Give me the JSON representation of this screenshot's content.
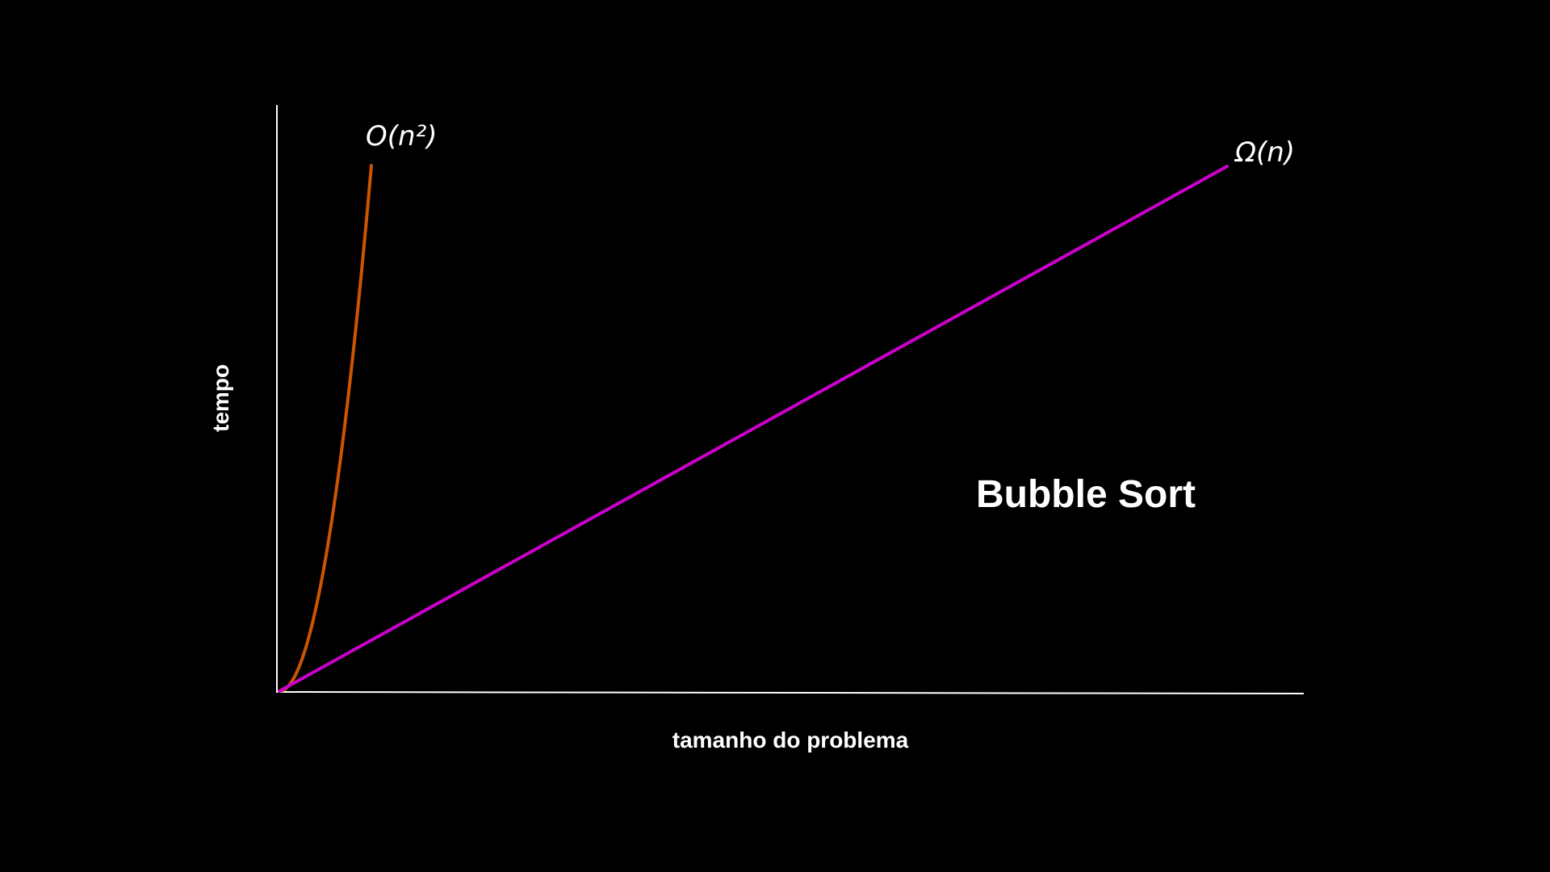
{
  "background_color": "#000000",
  "chart_data": {
    "type": "line",
    "title": "Bubble Sort",
    "xlabel": "tamanho do problema",
    "ylabel": "tempo",
    "grid": false,
    "legend": "none",
    "axis_color": "#ffffff",
    "series": [
      {
        "name": "O(n²)",
        "color": "#cc5500",
        "kind": "quadratic"
      },
      {
        "name": "Ω(n)",
        "color": "#cc00cc",
        "kind": "linear"
      }
    ]
  }
}
